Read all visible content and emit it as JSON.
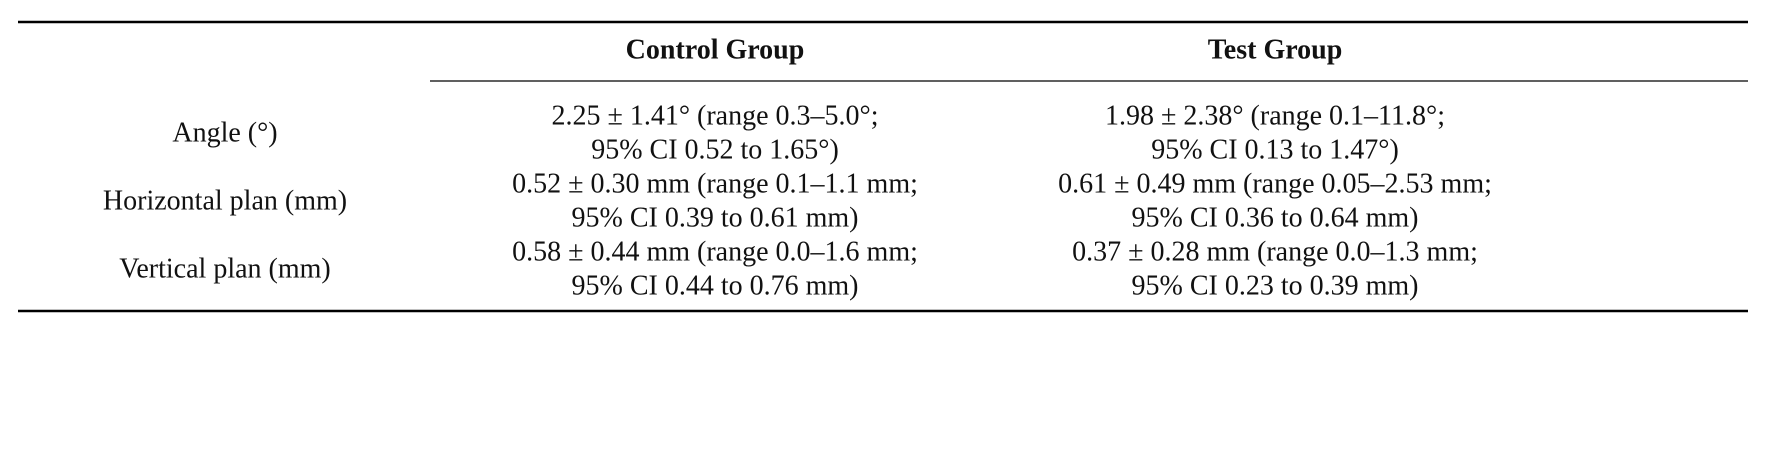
{
  "table": {
    "header": [
      "Control Group",
      "Test Group"
    ],
    "rows": [
      {
        "label": "Angle (°)",
        "cells": [
          [
            "2.25 ± 1.41° (range 0.3–5.0°;",
            "95% CI 0.52 to 1.65°)"
          ],
          [
            "1.98 ± 2.38° (range 0.1–11.8°;",
            "95% CI 0.13 to 1.47°)"
          ]
        ]
      },
      {
        "label": "Horizontal plan (mm)",
        "cells": [
          [
            "0.52 ± 0.30 mm (range 0.1–1.1 mm;",
            "95% CI 0.39 to 0.61 mm)"
          ],
          [
            "0.61 ± 0.49 mm (range 0.05–2.53 mm;",
            "95% CI 0.36 to 0.64 mm)"
          ]
        ]
      },
      {
        "label": "Vertical plan (mm)",
        "cells": [
          [
            "0.58 ± 0.44 mm (range 0.0–1.6 mm;",
            "95% CI 0.44 to 0.76 mm)"
          ],
          [
            "0.37 ± 0.28 mm (range 0.0–1.3 mm;",
            "95% CI 0.23 to 0.39 mm)"
          ]
        ]
      }
    ]
  }
}
